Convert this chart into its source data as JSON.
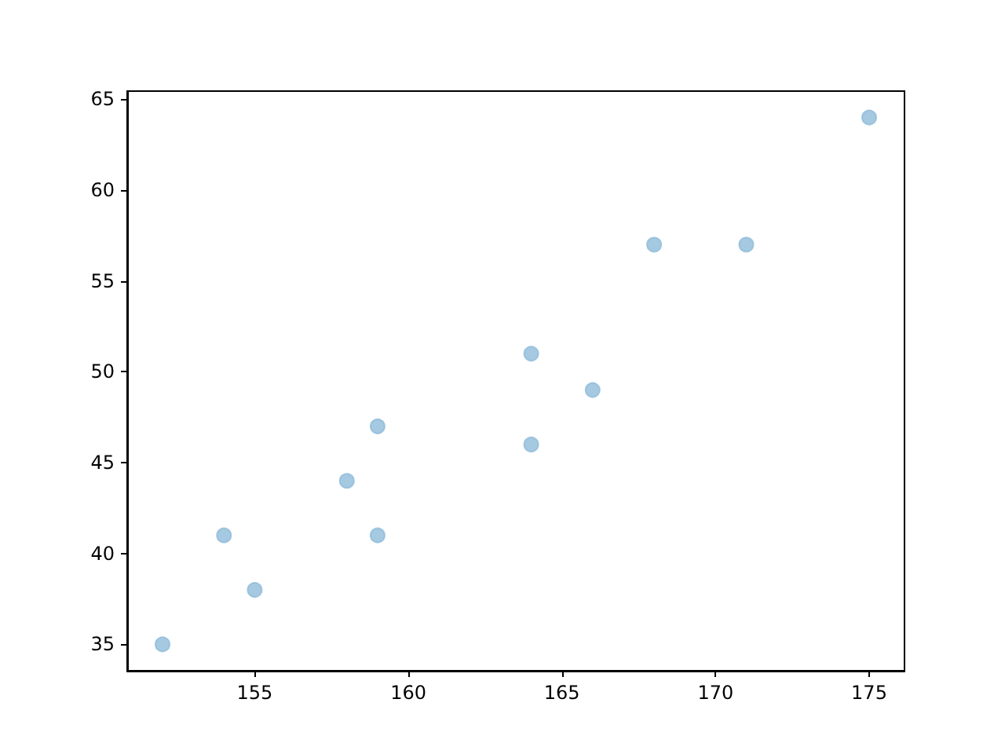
{
  "chart_data": {
    "type": "scatter",
    "x": [
      152,
      154,
      155,
      158,
      159,
      159,
      164,
      164,
      166,
      168,
      171,
      175
    ],
    "values": [
      35,
      41,
      38,
      44,
      47,
      41,
      51,
      46,
      49,
      57,
      57,
      64
    ],
    "color": "#8fbbd9",
    "marker": "circle",
    "grid": false,
    "xlim": [
      150.85,
      176.15
    ],
    "xticks": [
      155,
      160,
      165,
      170,
      175
    ],
    "ylim": [
      33.55,
      65.45
    ],
    "yticks": [
      35,
      40,
      45,
      50,
      55,
      60,
      65
    ]
  }
}
